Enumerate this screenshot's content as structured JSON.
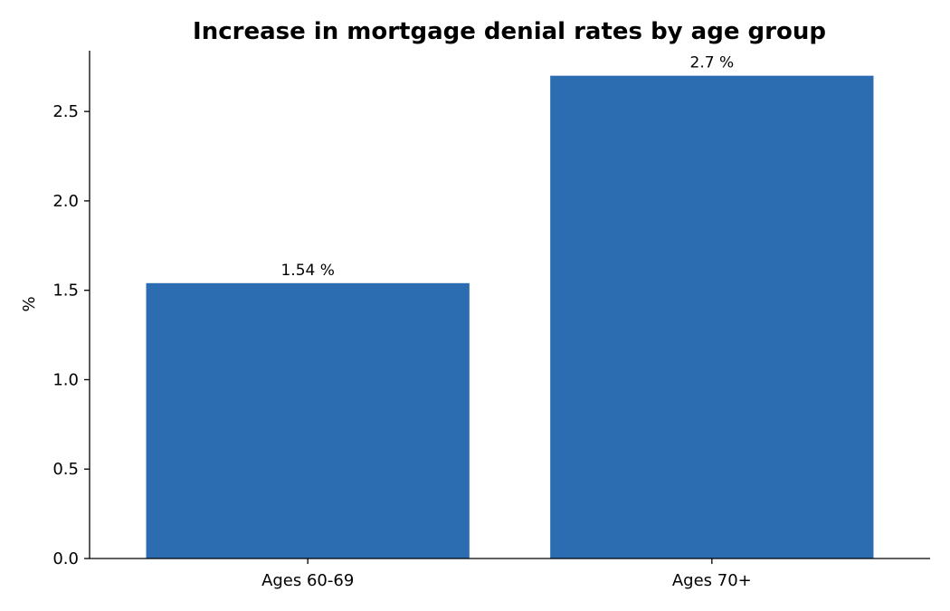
{
  "chart_data": {
    "type": "bar",
    "title": "Increase in mortgage denial rates by age group",
    "xlabel": "",
    "ylabel": "%",
    "categories": [
      "Ages 60-69",
      "Ages 70+"
    ],
    "values": [
      1.54,
      2.7
    ],
    "data_labels": [
      "1.54 %",
      "2.7 %"
    ],
    "ylim": [
      0,
      2.84
    ],
    "yticks": [
      0.0,
      0.5,
      1.0,
      1.5,
      2.0,
      2.5
    ],
    "ytick_labels": [
      "0.0",
      "0.5",
      "1.0",
      "1.5",
      "2.0",
      "2.5"
    ],
    "bar_color": "#2c6cb0",
    "grid": false,
    "legend": "none"
  }
}
